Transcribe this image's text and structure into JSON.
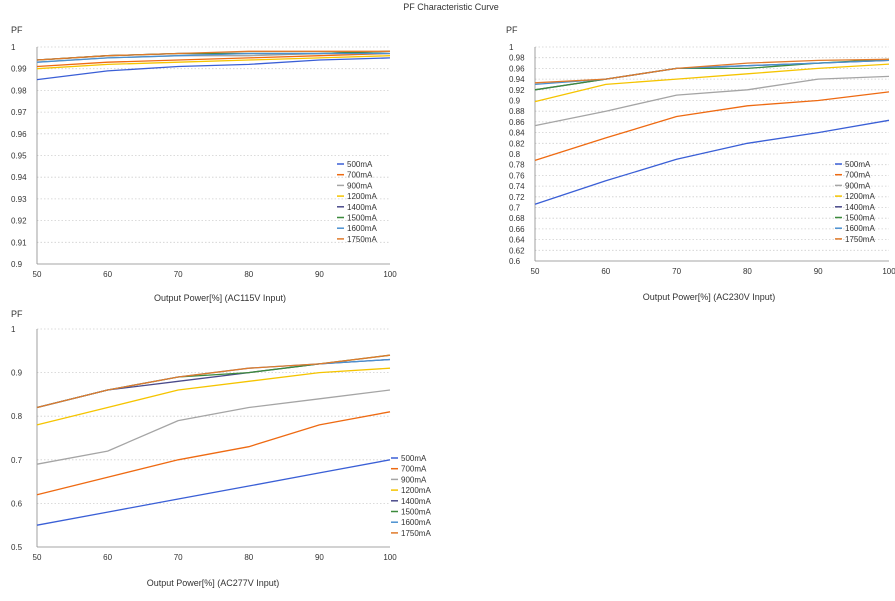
{
  "page_title": "PF Characteristic Curve",
  "colors": {
    "500mA": "#3a5fd6",
    "700mA": "#ee6a12",
    "900mA": "#a5a5a5",
    "1200mA": "#f5c400",
    "1400mA": "#4a4a8a",
    "1500mA": "#3c8a3c",
    "1600mA": "#4a90d0",
    "1750mA": "#e07a2a",
    "grid": "#cfcfcf"
  },
  "chart_data": [
    {
      "type": "line",
      "ylabel": "PF",
      "xlabel": "Output Power[%] (AC115V Input)",
      "x": [
        50,
        60,
        70,
        80,
        90,
        100
      ],
      "xlim": [
        50,
        100
      ],
      "ylim": [
        0.9,
        1
      ],
      "yticks": [
        "0.9",
        "0.91",
        "0.92",
        "0.93",
        "0.94",
        "0.95",
        "0.96",
        "0.97",
        "0.98",
        "0.99",
        "1"
      ],
      "xticks": [
        "50",
        "60",
        "70",
        "80",
        "90",
        "100"
      ],
      "grid": "horizontal dotted",
      "legend": "right",
      "series": [
        {
          "name": "500mA",
          "values": [
            0.985,
            0.989,
            0.991,
            0.992,
            0.994,
            0.995
          ]
        },
        {
          "name": "700mA",
          "values": [
            0.991,
            0.993,
            0.994,
            0.995,
            0.996,
            0.997
          ]
        },
        {
          "name": "900mA",
          "values": [
            0.993,
            0.995,
            0.996,
            0.996,
            0.997,
            0.997
          ]
        },
        {
          "name": "1200mA",
          "values": [
            0.99,
            0.992,
            0.993,
            0.994,
            0.995,
            0.996
          ]
        },
        {
          "name": "1400mA",
          "values": [
            0.994,
            0.996,
            0.997,
            0.997,
            0.997,
            0.998
          ]
        },
        {
          "name": "1500mA",
          "values": [
            0.994,
            0.996,
            0.997,
            0.997,
            0.997,
            0.998
          ]
        },
        {
          "name": "1600mA",
          "values": [
            0.993,
            0.995,
            0.996,
            0.997,
            0.997,
            0.997
          ]
        },
        {
          "name": "1750mA",
          "values": [
            0.994,
            0.996,
            0.997,
            0.998,
            0.998,
            0.998
          ]
        }
      ]
    },
    {
      "type": "line",
      "ylabel": "PF",
      "xlabel": "Output Power[%] (AC230V Input)",
      "x": [
        50,
        60,
        70,
        80,
        90,
        100
      ],
      "xlim": [
        50,
        100
      ],
      "ylim": [
        0.6,
        1
      ],
      "yticks": [
        "0.6",
        "0.62",
        "0.64",
        "0.66",
        "0.68",
        "0.7",
        "0.72",
        "0.74",
        "0.76",
        "0.78",
        "0.8",
        "0.82",
        "0.84",
        "0.86",
        "0.88",
        "0.9",
        "0.92",
        "0.94",
        "0.96",
        "0.98",
        "1"
      ],
      "xticks": [
        "50",
        "60",
        "70",
        "80",
        "90",
        "100"
      ],
      "grid": "horizontal dotted",
      "legend": "right",
      "series": [
        {
          "name": "500mA",
          "values": [
            0.706,
            0.75,
            0.79,
            0.82,
            0.84,
            0.863
          ]
        },
        {
          "name": "700mA",
          "values": [
            0.788,
            0.83,
            0.87,
            0.89,
            0.9,
            0.916
          ]
        },
        {
          "name": "900mA",
          "values": [
            0.853,
            0.88,
            0.91,
            0.92,
            0.94,
            0.945
          ]
        },
        {
          "name": "1200mA",
          "values": [
            0.898,
            0.93,
            0.94,
            0.95,
            0.96,
            0.968
          ]
        },
        {
          "name": "1400mA",
          "values": [
            0.92,
            0.94,
            0.96,
            0.965,
            0.97,
            0.975
          ]
        },
        {
          "name": "1500mA",
          "values": [
            0.92,
            0.94,
            0.96,
            0.96,
            0.97,
            0.977
          ]
        },
        {
          "name": "1600mA",
          "values": [
            0.93,
            0.94,
            0.96,
            0.965,
            0.97,
            0.975
          ]
        },
        {
          "name": "1750mA",
          "values": [
            0.933,
            0.94,
            0.96,
            0.97,
            0.975,
            0.977
          ]
        }
      ]
    },
    {
      "type": "line",
      "ylabel": "PF",
      "xlabel": "Output Power[%] (AC277V Input)",
      "x": [
        50,
        60,
        70,
        80,
        90,
        100
      ],
      "xlim": [
        50,
        100
      ],
      "ylim": [
        0.5,
        1
      ],
      "yticks": [
        "0.5",
        "0.6",
        "0.7",
        "0.8",
        "0.9",
        "1"
      ],
      "xticks": [
        "50",
        "60",
        "70",
        "80",
        "90",
        "100"
      ],
      "grid": "horizontal dotted",
      "legend": "right",
      "series": [
        {
          "name": "500mA",
          "values": [
            0.55,
            0.58,
            0.61,
            0.64,
            0.67,
            0.7
          ]
        },
        {
          "name": "700mA",
          "values": [
            0.62,
            0.66,
            0.7,
            0.73,
            0.78,
            0.81
          ]
        },
        {
          "name": "900mA",
          "values": [
            0.69,
            0.72,
            0.79,
            0.82,
            0.84,
            0.86
          ]
        },
        {
          "name": "1200mA",
          "values": [
            0.78,
            0.82,
            0.86,
            0.88,
            0.9,
            0.91
          ]
        },
        {
          "name": "1400mA",
          "values": [
            0.82,
            0.86,
            0.88,
            0.9,
            0.92,
            0.93
          ]
        },
        {
          "name": "1500mA",
          "values": [
            0.82,
            0.86,
            0.89,
            0.9,
            0.92,
            0.94
          ]
        },
        {
          "name": "1600mA",
          "values": [
            0.82,
            0.86,
            0.89,
            0.91,
            0.92,
            0.93
          ]
        },
        {
          "name": "1750mA",
          "values": [
            0.82,
            0.86,
            0.89,
            0.91,
            0.92,
            0.94
          ]
        }
      ]
    }
  ]
}
